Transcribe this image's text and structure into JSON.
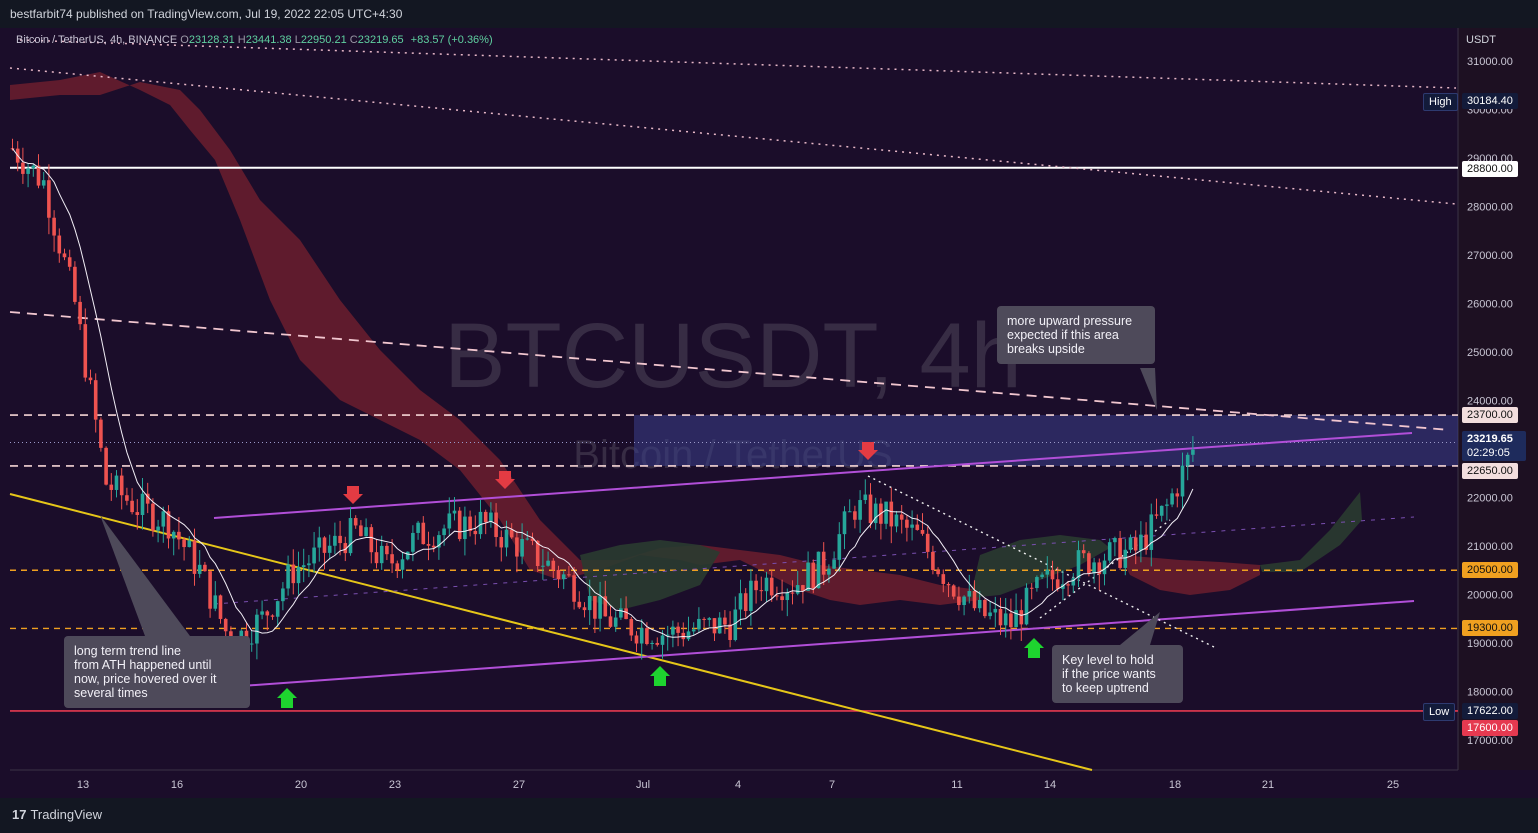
{
  "header": {
    "published": "bestfarbit74 published on TradingView.com, Jul 19, 2022 22:05 UTC+4:30"
  },
  "symbol": {
    "name": "Bitcoin / TetherUS, 4h, BINANCE",
    "o_label": "O",
    "o": "23128.31",
    "h_label": "H",
    "h": "23441.38",
    "l_label": "L",
    "l": "22950.21",
    "c_label": "C",
    "c": "23219.65",
    "change": "+83.57 (+0.36%)"
  },
  "watermark": {
    "ticker": "BTCUSDT, 4h",
    "name": "Bitcoin / TetherUS"
  },
  "brand": {
    "name": "TradingView",
    "logo": "17"
  },
  "notes": {
    "upward": [
      "more upward pressure",
      "expected if this area",
      "breaks upside"
    ],
    "trend": [
      "long term trend line",
      "from ATH happened until",
      "now, price hovered over it",
      "several times"
    ],
    "key": [
      "Key level to hold",
      "if the price wants",
      "to keep uptrend"
    ]
  },
  "price_tags": {
    "high_label": "High",
    "high": "30184.40",
    "l28800": "28800.00",
    "l23700": "23700.00",
    "last": "23219.65",
    "countdown": "02:29:05",
    "l22650": "22650.00",
    "l20500": "20500.00",
    "l19300": "19300.00",
    "low_label": "Low",
    "low": "17622.00",
    "l17600": "17600.00"
  },
  "colors": {
    "bull": "#26a69a",
    "bear": "#ef5350",
    "cloud_bear": "#6b1f2e",
    "cloud_bull": "#2a3b30",
    "channel": "#b14fd8",
    "trend": "#e6c619",
    "resistance_zone": "#3a3f8a",
    "level_orange": "#f0a020",
    "level_white": "#ffffff",
    "level_red": "#e53950"
  },
  "chart_data": {
    "type": "line",
    "symbol": "BTCUSDT",
    "interval": "4h",
    "yunit": "USDT",
    "ylim": [
      16600,
      31600
    ],
    "y_ticks": [
      17000,
      18000,
      19000,
      20000,
      21000,
      22000,
      23000,
      24000,
      25000,
      26000,
      27000,
      28000,
      29000,
      30000,
      31000
    ],
    "x_ticks": [
      "13",
      "16",
      "20",
      "23",
      "27",
      "Jul",
      "4",
      "7",
      "11",
      "14",
      "18",
      "21",
      "25"
    ],
    "series": [
      {
        "x": [
          "Jun 11",
          "Jun 12",
          "Jun 13",
          "Jun 14",
          "Jun 15",
          "Jun 16",
          "Jun 17",
          "Jun 18",
          "Jun 19",
          "Jun 20",
          "Jun 21",
          "Jun 22",
          "Jun 23",
          "Jun 24",
          "Jun 25",
          "Jun 26",
          "Jun 27",
          "Jun 28",
          "Jun 29",
          "Jun 30",
          "Jul 1",
          "Jul 2",
          "Jul 3",
          "Jul 4",
          "Jul 5",
          "Jul 6",
          "Jul 7",
          "Jul 8",
          "Jul 9",
          "Jul 10",
          "Jul 11",
          "Jul 12",
          "Jul 13",
          "Jul 14",
          "Jul 15",
          "Jul 16",
          "Jul 17",
          "Jul 18",
          "Jul 19"
        ],
        "values": [
          29200,
          28500,
          26000,
          22300,
          21800,
          21500,
          20500,
          19000,
          19500,
          20500,
          20900,
          21300,
          20600,
          21200,
          21400,
          21500,
          21100,
          20700,
          20200,
          19500,
          19300,
          19200,
          19300,
          19400,
          20300,
          20200,
          20600,
          21800,
          21600,
          21200,
          20300,
          19600,
          19400,
          20200,
          20600,
          20800,
          20900,
          21800,
          23219.65
        ]
      }
    ],
    "levels": [
      28800,
      23700,
      22650,
      20500,
      19300,
      17600
    ],
    "high": 30184.4,
    "low": 17622.0,
    "last": 23219.65
  }
}
